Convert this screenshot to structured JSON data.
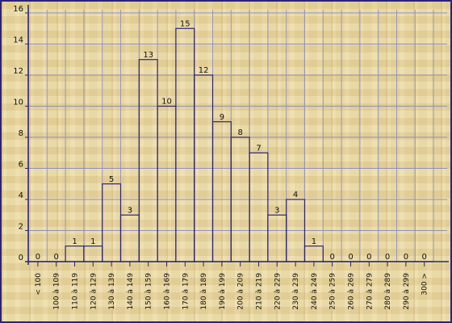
{
  "chart_data": {
    "type": "bar",
    "title": "",
    "xlabel": "",
    "ylabel": "",
    "categories": [
      "< 100",
      "100 à 109",
      "110 à 119",
      "120 à 129",
      "130 à 139",
      "140 à 149",
      "150 à 159",
      "160 à 169",
      "170 à 179",
      "180 à 189",
      "190 à 199",
      "200 à 209",
      "210 à 219",
      "220 à 229",
      "230 à 239",
      "240 à 249",
      "250 à 259",
      "260 à 269",
      "270 à 279",
      "280 à 289",
      "290 à 299",
      "300 >"
    ],
    "values": [
      0,
      0,
      1,
      1,
      5,
      3,
      13,
      10,
      15,
      12,
      9,
      8,
      7,
      3,
      4,
      1,
      0,
      0,
      0,
      0,
      0,
      0
    ],
    "ylim": [
      0,
      16
    ],
    "yticks": [
      0,
      2,
      4,
      6,
      8,
      10,
      12,
      14,
      16
    ],
    "grid": true,
    "legend": "none",
    "colors": {
      "bar_stroke": "#2a2477",
      "grid": "#8f8fc0",
      "axis": "#2a2477",
      "frame": "#2a2477"
    }
  }
}
